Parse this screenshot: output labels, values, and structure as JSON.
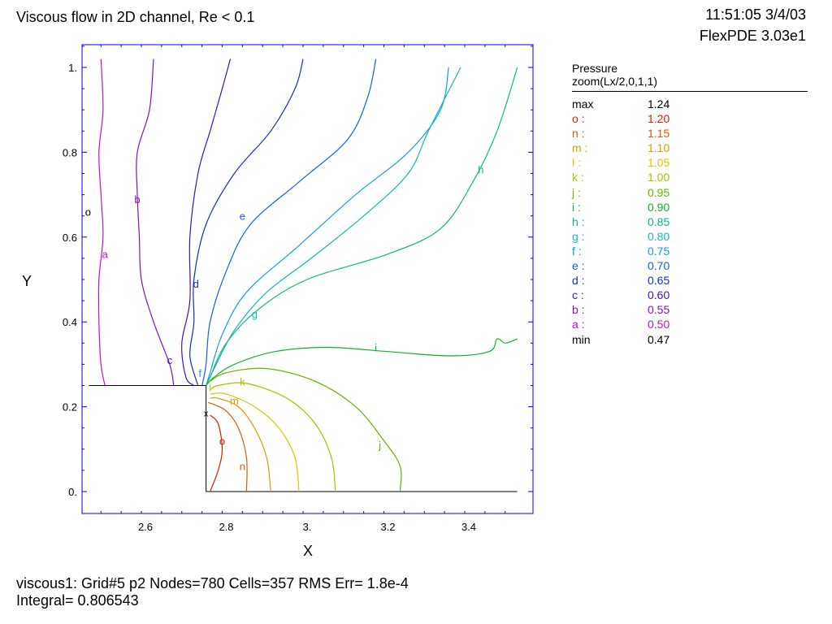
{
  "header": {
    "title": "Viscous flow in 2D channel, Re < 0.1",
    "timestamp": "11:51:05 3/4/03",
    "app_version": "FlexPDE 3.03e1"
  },
  "footer": {
    "line1": "viscous1:  Grid#5  p2  Nodes=780 Cells=357 RMS Err= 1.8e-4",
    "line2": "Integral=  0.806543"
  },
  "legend": {
    "title": "Pressure",
    "subtitle": "zoom(Lx/2,0,1,1)",
    "rows": [
      {
        "label": "max",
        "value": "1.24",
        "color": "#000000"
      },
      {
        "label": "o :",
        "value": "1.20",
        "color": "#d42000"
      },
      {
        "label": "n :",
        "value": "1.15",
        "color": "#e05a00"
      },
      {
        "label": "m :",
        "value": "1.10",
        "color": "#e09a00"
      },
      {
        "label": "l :",
        "value": "1.05",
        "color": "#d8c800"
      },
      {
        "label": "k :",
        "value": "1.00",
        "color": "#a8c000"
      },
      {
        "label": "j :",
        "value": "0.95",
        "color": "#60b400"
      },
      {
        "label": "i :",
        "value": "0.90",
        "color": "#10b030"
      },
      {
        "label": "h :",
        "value": "0.85",
        "color": "#10b880"
      },
      {
        "label": "g :",
        "value": "0.80",
        "color": "#10b8b8"
      },
      {
        "label": "f :",
        "value": "0.75",
        "color": "#10a0e0"
      },
      {
        "label": "e :",
        "value": "0.70",
        "color": "#1060e0"
      },
      {
        "label": "d :",
        "value": "0.65",
        "color": "#1030c0"
      },
      {
        "label": "c :",
        "value": "0.60",
        "color": "#4010c8"
      },
      {
        "label": "b :",
        "value": "0.55",
        "color": "#8010d0"
      },
      {
        "label": "a :",
        "value": "0.50",
        "color": "#c010d0"
      },
      {
        "label": "min",
        "value": "0.47",
        "color": "#000000"
      }
    ]
  },
  "chart_data": {
    "type": "contour",
    "title": "Viscous flow in 2D channel, Re < 0.1",
    "xlabel": "X",
    "ylabel": "Y",
    "xlim": [
      2.45,
      3.52
    ],
    "ylim": [
      0.0,
      1.0
    ],
    "x_ticks": [
      2.6,
      2.8,
      3.0,
      3.2,
      3.4
    ],
    "x_tick_labels": [
      "2.6",
      "2.8",
      "3.",
      "3.2",
      "3.4"
    ],
    "y_ticks": [
      0.0,
      0.2,
      0.4,
      0.6,
      0.8,
      1.0
    ],
    "y_tick_labels": [
      "0.",
      "0.2",
      "0.4",
      "0.6",
      "0.8",
      "1."
    ],
    "variable": "Pressure",
    "boundary": [
      [
        2.46,
        0.25
      ],
      [
        2.75,
        0.25
      ],
      [
        2.75,
        0.0
      ],
      [
        3.52,
        0.0
      ]
    ],
    "marker": {
      "x": 2.75,
      "y": 0.185,
      "symbol": "x"
    },
    "stray_labels": [
      {
        "text": "o",
        "x": 2.46,
        "y": 0.668,
        "color": "#000000"
      }
    ],
    "contours": [
      {
        "label": "a",
        "level": 0.5,
        "color": "#c010d0",
        "label_at": [
          2.5,
          0.56
        ],
        "points": [
          [
            2.49,
            1.02
          ],
          [
            2.495,
            0.9
          ],
          [
            2.485,
            0.8
          ],
          [
            2.49,
            0.7
          ],
          [
            2.495,
            0.6
          ],
          [
            2.485,
            0.5
          ],
          [
            2.485,
            0.4
          ],
          [
            2.49,
            0.3
          ],
          [
            2.5,
            0.25
          ]
        ]
      },
      {
        "label": "b",
        "level": 0.55,
        "color": "#8010d0",
        "label_at": [
          2.58,
          0.69
        ],
        "points": [
          [
            2.62,
            1.02
          ],
          [
            2.61,
            0.9
          ],
          [
            2.58,
            0.8
          ],
          [
            2.58,
            0.7
          ],
          [
            2.585,
            0.6
          ],
          [
            2.59,
            0.5
          ],
          [
            2.62,
            0.4
          ],
          [
            2.66,
            0.3
          ],
          [
            2.67,
            0.25
          ]
        ]
      },
      {
        "label": "c",
        "level": 0.6,
        "color": "#4010c8",
        "label_at": [
          2.66,
          0.31
        ],
        "points": [
          [
            2.81,
            1.02
          ],
          [
            2.79,
            0.95
          ],
          [
            2.76,
            0.85
          ],
          [
            2.73,
            0.75
          ],
          [
            2.71,
            0.6
          ],
          [
            2.71,
            0.45
          ],
          [
            2.69,
            0.35
          ],
          [
            2.7,
            0.27
          ],
          [
            2.72,
            0.25
          ]
        ]
      },
      {
        "label": "d",
        "level": 0.65,
        "color": "#1030c0",
        "label_at": [
          2.725,
          0.49
        ],
        "points": [
          [
            2.99,
            1.02
          ],
          [
            2.97,
            0.95
          ],
          [
            2.91,
            0.85
          ],
          [
            2.82,
            0.75
          ],
          [
            2.75,
            0.63
          ],
          [
            2.72,
            0.5
          ],
          [
            2.72,
            0.4
          ],
          [
            2.71,
            0.32
          ],
          [
            2.73,
            0.25
          ]
        ]
      },
      {
        "label": "e",
        "level": 0.7,
        "color": "#1060e0",
        "label_at": [
          2.84,
          0.65
        ],
        "points": [
          [
            3.17,
            1.02
          ],
          [
            3.15,
            0.93
          ],
          [
            3.1,
            0.83
          ],
          [
            2.98,
            0.73
          ],
          [
            2.86,
            0.63
          ],
          [
            2.8,
            0.52
          ],
          [
            2.76,
            0.4
          ],
          [
            2.75,
            0.3
          ],
          [
            2.74,
            0.25
          ]
        ]
      },
      {
        "label": "f",
        "level": 0.75,
        "color": "#10a0e0",
        "label_at": [
          2.735,
          0.28
        ],
        "points": [
          [
            3.35,
            1.0
          ],
          [
            3.33,
            0.9
          ],
          [
            3.25,
            0.8
          ],
          [
            3.12,
            0.7
          ],
          [
            2.98,
            0.58
          ],
          [
            2.85,
            0.47
          ],
          [
            2.79,
            0.37
          ],
          [
            2.76,
            0.28
          ],
          [
            2.75,
            0.25
          ]
        ]
      },
      {
        "label": "g",
        "level": 0.8,
        "color": "#10b8b8",
        "label_at": [
          2.87,
          0.42
        ],
        "points": [
          [
            3.38,
            1.0
          ],
          [
            3.3,
            0.85
          ],
          [
            3.25,
            0.75
          ],
          [
            3.14,
            0.65
          ],
          [
            3.01,
            0.55
          ],
          [
            2.9,
            0.47
          ],
          [
            2.82,
            0.38
          ],
          [
            2.77,
            0.29
          ],
          [
            2.75,
            0.25
          ]
        ]
      },
      {
        "label": "h",
        "level": 0.85,
        "color": "#10b880",
        "label_at": [
          3.43,
          0.76
        ],
        "points": [
          [
            3.52,
            1.0
          ],
          [
            3.47,
            0.85
          ],
          [
            3.41,
            0.73
          ],
          [
            3.33,
            0.62
          ],
          [
            3.2,
            0.56
          ],
          [
            3.0,
            0.5
          ],
          [
            2.88,
            0.43
          ],
          [
            2.8,
            0.35
          ],
          [
            2.76,
            0.27
          ],
          [
            2.75,
            0.25
          ]
        ]
      },
      {
        "label": "i",
        "level": 0.9,
        "color": "#10b030",
        "label_at": [
          3.17,
          0.34
        ],
        "points": [
          [
            3.52,
            0.36
          ],
          [
            3.49,
            0.35
          ],
          [
            3.47,
            0.36
          ],
          [
            3.45,
            0.33
          ],
          [
            3.35,
            0.32
          ],
          [
            3.2,
            0.33
          ],
          [
            3.05,
            0.34
          ],
          [
            2.92,
            0.33
          ],
          [
            2.82,
            0.3
          ],
          [
            2.77,
            0.27
          ],
          [
            2.75,
            0.25
          ]
        ]
      },
      {
        "label": "j",
        "level": 0.95,
        "color": "#60b400",
        "label_at": [
          3.18,
          0.11
        ],
        "points": [
          [
            3.23,
            0.0
          ],
          [
            3.23,
            0.06
          ],
          [
            3.19,
            0.12
          ],
          [
            3.12,
            0.2
          ],
          [
            3.02,
            0.26
          ],
          [
            2.9,
            0.29
          ],
          [
            2.8,
            0.28
          ],
          [
            2.76,
            0.26
          ]
        ]
      },
      {
        "label": "k",
        "level": 1.0,
        "color": "#a8c000",
        "label_at": [
          2.84,
          0.26
        ],
        "points": [
          [
            3.07,
            0.0
          ],
          [
            3.06,
            0.08
          ],
          [
            3.02,
            0.16
          ],
          [
            2.95,
            0.22
          ],
          [
            2.85,
            0.255
          ],
          [
            2.78,
            0.25
          ],
          [
            2.76,
            0.24
          ]
        ]
      },
      {
        "label": "l",
        "level": 1.05,
        "color": "#d8c800",
        "label_at": [
          2.76,
          0.245
        ],
        "points": [
          [
            2.98,
            0.0
          ],
          [
            2.97,
            0.08
          ],
          [
            2.93,
            0.15
          ],
          [
            2.87,
            0.2
          ],
          [
            2.8,
            0.23
          ],
          [
            2.76,
            0.23
          ]
        ]
      },
      {
        "label": "m",
        "level": 1.1,
        "color": "#e09a00",
        "label_at": [
          2.82,
          0.215
        ],
        "points": [
          [
            2.91,
            0.0
          ],
          [
            2.9,
            0.08
          ],
          [
            2.87,
            0.15
          ],
          [
            2.83,
            0.2
          ],
          [
            2.78,
            0.22
          ],
          [
            2.76,
            0.22
          ]
        ]
      },
      {
        "label": "n",
        "level": 1.15,
        "color": "#e05a00",
        "label_at": [
          2.84,
          0.06
        ],
        "points": [
          [
            2.85,
            0.0
          ],
          [
            2.85,
            0.08
          ],
          [
            2.83,
            0.15
          ],
          [
            2.8,
            0.19
          ],
          [
            2.77,
            0.205
          ],
          [
            2.755,
            0.21
          ]
        ]
      },
      {
        "label": "o",
        "level": 1.2,
        "color": "#d42000",
        "label_at": [
          2.79,
          0.12
        ],
        "points": [
          [
            2.76,
            0.0
          ],
          [
            2.78,
            0.05
          ],
          [
            2.79,
            0.1
          ],
          [
            2.78,
            0.16
          ],
          [
            2.76,
            0.18
          ]
        ]
      }
    ]
  },
  "colors": {
    "axis_tick": "#0000ff",
    "frame": "#000000",
    "boundary": "#000000"
  }
}
